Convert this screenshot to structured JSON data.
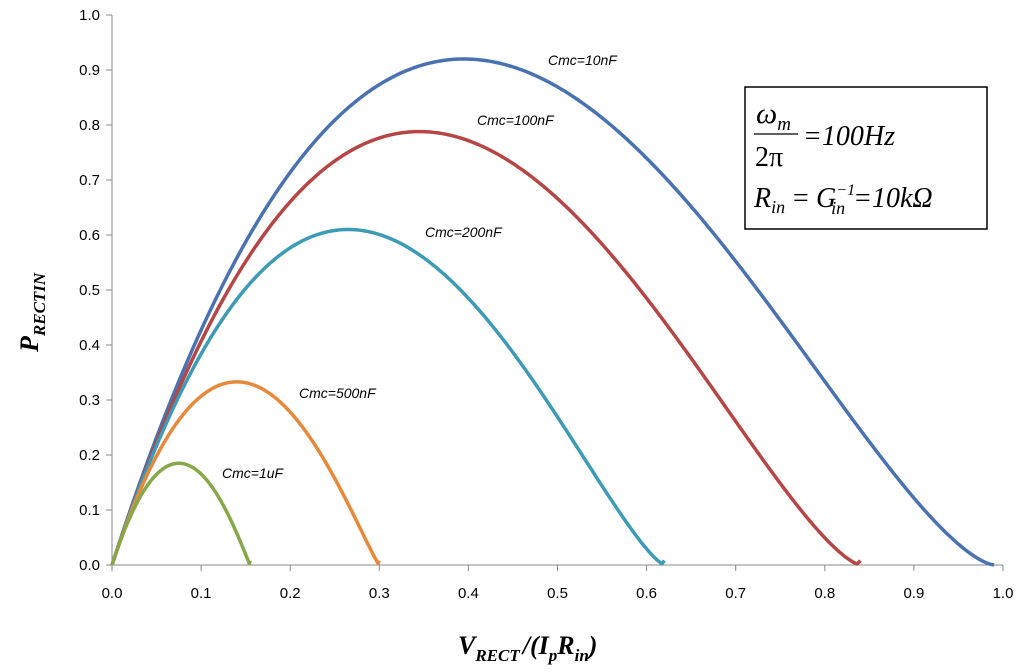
{
  "chart_data": {
    "type": "line",
    "title": "",
    "xlabel": "V_RECT / (I_p R_in)",
    "ylabel": "P_RECTIN",
    "xlim": [
      0,
      1.0
    ],
    "ylim": [
      0,
      1.0
    ],
    "x_ticks": [
      "0.0",
      "0.1",
      "0.2",
      "0.3",
      "0.4",
      "0.5",
      "0.6",
      "0.7",
      "0.8",
      "0.9",
      "1.0"
    ],
    "y_ticks": [
      "0.0",
      "0.1",
      "0.2",
      "0.3",
      "0.4",
      "0.5",
      "0.6",
      "0.7",
      "0.8",
      "0.9",
      "1.0"
    ],
    "grid": false,
    "series": [
      {
        "name": "Cmc=10nF",
        "label": "Cmc=10nF",
        "color": "#4A72B0",
        "peak_x": 0.395,
        "peak_y": 0.92,
        "end_x": 0.99
      },
      {
        "name": "Cmc=100nF",
        "label": "Cmc=100nF",
        "color": "#B54645",
        "peak_x": 0.345,
        "peak_y": 0.788,
        "end_x": 0.84
      },
      {
        "name": "Cmc=200nF",
        "label": "Cmc=200nF",
        "color": "#3D9BB5",
        "peak_x": 0.265,
        "peak_y": 0.61,
        "end_x": 0.62
      },
      {
        "name": "Cmc=500nF",
        "label": "Cmc=500nF",
        "color": "#E7893A",
        "peak_x": 0.14,
        "peak_y": 0.333,
        "end_x": 0.3
      },
      {
        "name": "Cmc=1uF",
        "label": "Cmc=1uF",
        "color": "#86A848",
        "peak_x": 0.075,
        "peak_y": 0.185,
        "end_x": 0.155
      }
    ],
    "annotation": {
      "omega_symbol": "ω",
      "omega_sub": "m",
      "two_pi": "2π",
      "line1_rhs": "=100Hz",
      "r_symbol": "R",
      "r_sub": "in",
      "eq": "=",
      "g_symbol": "G",
      "g_sup": "−1",
      "g_sub": "in",
      "line2_rhs": "=10kΩ"
    },
    "axis_titles": {
      "y_main": "P",
      "y_sub": "RECTIN",
      "x_v": "V",
      "x_v_sub": "RECT",
      "x_slash": "/(",
      "x_i": "I",
      "x_i_sub": "p",
      "x_r": "R",
      "x_r_sub": "in",
      "x_close": ")"
    }
  }
}
